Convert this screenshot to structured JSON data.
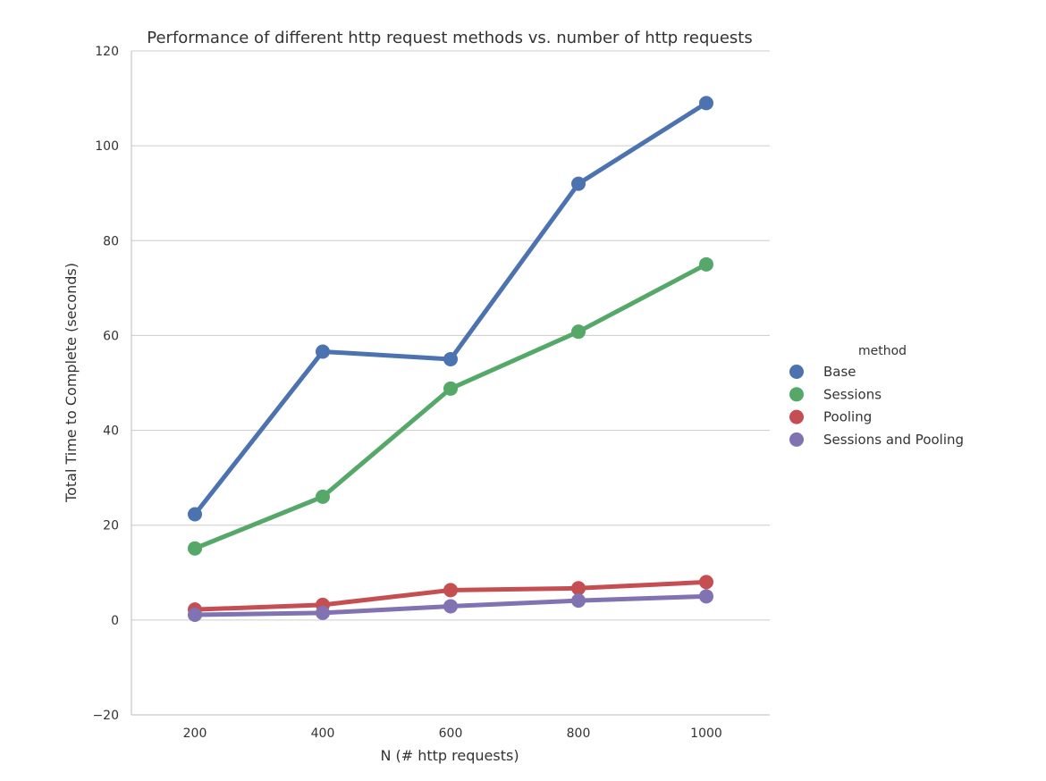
{
  "chart_data": {
    "type": "line",
    "title": "Performance of different http request methods vs. number of http requests",
    "xlabel": "N (# http requests)",
    "ylabel": "Total Time to Complete (seconds)",
    "categories": [
      "200",
      "400",
      "600",
      "800",
      "1000"
    ],
    "yticks": [
      "−20",
      "0",
      "20",
      "40",
      "60",
      "80",
      "100",
      "120"
    ],
    "ylim": [
      -20,
      120
    ],
    "grid": "horizontal",
    "legend": {
      "title": "method",
      "placement": "right"
    },
    "series": [
      {
        "name": "Base",
        "color": "#4c72b0",
        "values": [
          22.3,
          56.6,
          55.0,
          92.0,
          109.0
        ]
      },
      {
        "name": "Sessions",
        "color": "#55a868",
        "values": [
          15.1,
          26.0,
          48.8,
          60.8,
          75.0
        ]
      },
      {
        "name": "Pooling",
        "color": "#c44e52",
        "values": [
          2.2,
          3.2,
          6.3,
          6.7,
          8.0
        ]
      },
      {
        "name": "Sessions and Pooling",
        "color": "#8172b2",
        "values": [
          1.1,
          1.5,
          2.9,
          4.1,
          5.0
        ]
      }
    ]
  }
}
